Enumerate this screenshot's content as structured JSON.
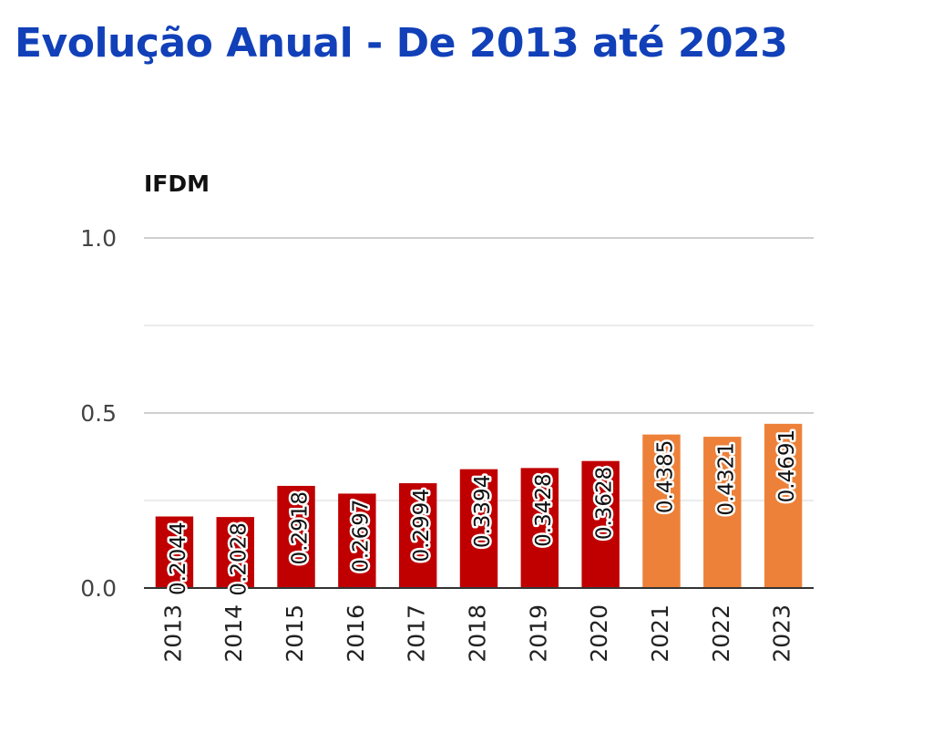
{
  "title": "Evolução Anual - De 2013 até 2023",
  "chart_data": {
    "type": "bar",
    "ylabel": "IFDM",
    "xlabel": "",
    "ylim": [
      0,
      1
    ],
    "yticks": [
      0,
      0.5,
      1
    ],
    "ytick_labels": [
      "0.0",
      "0.5",
      "1.0"
    ],
    "minor_gridlines": [
      0.25,
      0.75
    ],
    "grid": true,
    "categories": [
      "2013",
      "2014",
      "2015",
      "2016",
      "2017",
      "2018",
      "2019",
      "2020",
      "2021",
      "2022",
      "2023"
    ],
    "values": [
      0.2044,
      0.2028,
      0.2918,
      0.2697,
      0.2994,
      0.3394,
      0.3428,
      0.3628,
      0.4385,
      0.4321,
      0.4691
    ],
    "value_labels": [
      "0.2044",
      "0.2028",
      "0.2918",
      "0.2697",
      "0.2994",
      "0.3394",
      "0.3428",
      "0.3628",
      "0.4385",
      "0.4321",
      "0.4691"
    ],
    "bar_colors": [
      "#c00000",
      "#c00000",
      "#c00000",
      "#c00000",
      "#c00000",
      "#c00000",
      "#c00000",
      "#c00000",
      "#ed8139",
      "#ed8139",
      "#ed8139"
    ]
  }
}
